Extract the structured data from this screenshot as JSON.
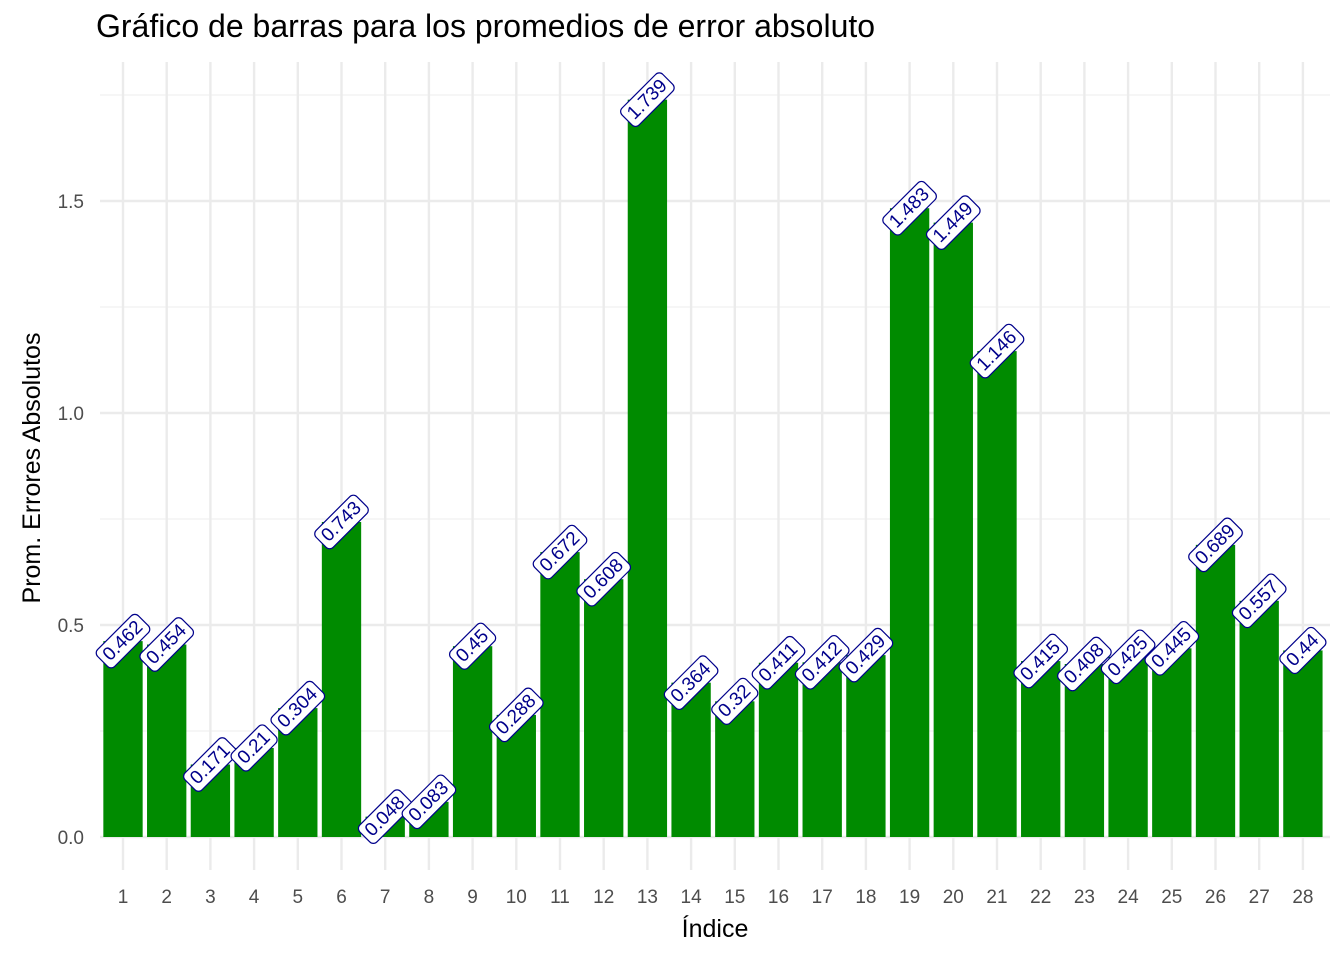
{
  "chart_data": {
    "type": "bar",
    "title": "Gráfico de barras para los promedios de error absoluto",
    "xlabel": "Índice",
    "ylabel": "Prom. Errores Absolutos",
    "categories": [
      "1",
      "2",
      "3",
      "4",
      "5",
      "6",
      "7",
      "8",
      "9",
      "10",
      "11",
      "12",
      "13",
      "14",
      "15",
      "16",
      "17",
      "18",
      "19",
      "20",
      "21",
      "22",
      "23",
      "24",
      "25",
      "26",
      "27",
      "28"
    ],
    "values": [
      0.462,
      0.454,
      0.171,
      0.21,
      0.304,
      0.743,
      0.048,
      0.083,
      0.45,
      0.288,
      0.672,
      0.608,
      1.739,
      0.364,
      0.32,
      0.411,
      0.412,
      0.429,
      1.483,
      1.449,
      1.146,
      0.415,
      0.408,
      0.425,
      0.445,
      0.689,
      0.557,
      0.44
    ],
    "data_labels": [
      "0.462",
      "0.454",
      "0.171",
      "0.21",
      "0.304",
      "0.743",
      "0.048",
      "0.083",
      "0.45",
      "0.288",
      "0.672",
      "0.608",
      "1.739",
      "0.364",
      "0.32",
      "0.411",
      "0.412",
      "0.429",
      "1.483",
      "1.449",
      "1.146",
      "0.415",
      "0.408",
      "0.425",
      "0.445",
      "0.689",
      "0.557",
      "0.44"
    ],
    "y_ticks": [
      0.0,
      0.5,
      1.0,
      1.5
    ],
    "y_tick_labels": [
      "0.0",
      "0.5",
      "1.0",
      "1.5"
    ],
    "ylim": [
      -0.08,
      1.83
    ],
    "grid": true,
    "legend": "none",
    "colors": {
      "bar": "#008b00",
      "label_text": "#00008b",
      "label_border": "#00008b",
      "label_fill": "#ffffff",
      "grid_major": "#ebebeb",
      "grid_minor": "#f4f4f4"
    }
  }
}
